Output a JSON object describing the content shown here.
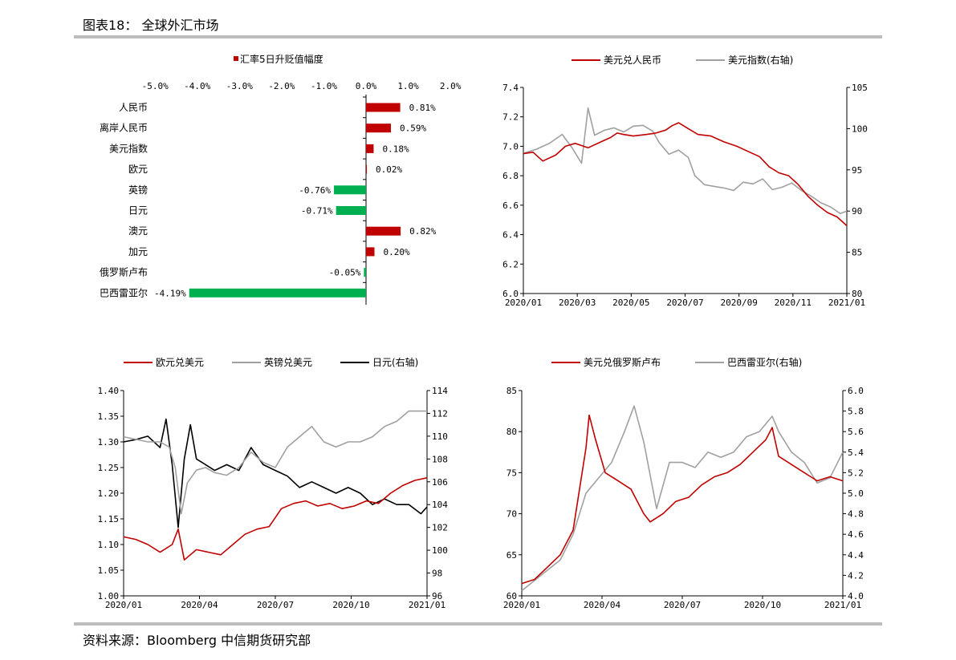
{
  "header": {
    "title": "图表18： 全球外汇市场"
  },
  "footer": {
    "source": "资料来源：Bloomberg 中信期货研究部"
  },
  "colors": {
    "red": "#c00000",
    "green": "#00b050",
    "gray": "#a0a0a0",
    "black": "#000000"
  },
  "chart_data": [
    {
      "type": "bar",
      "orientation": "horizontal",
      "legend": [
        "汇率5日升贬值幅度"
      ],
      "categories": [
        "人民币",
        "离岸人民币",
        "美元指数",
        "欧元",
        "英镑",
        "日元",
        "澳元",
        "加元",
        "俄罗斯卢布",
        "巴西雷亚尔"
      ],
      "values": [
        0.81,
        0.59,
        0.18,
        0.02,
        -0.76,
        -0.71,
        0.82,
        0.2,
        -0.05,
        -4.19
      ],
      "value_labels": [
        "0.81%",
        "0.59%",
        "0.18%",
        "0.02%",
        "-0.76%",
        "-0.71%",
        "0.82%",
        "0.20%",
        "-0.05%",
        "-4.19%"
      ],
      "xlim": [
        -5.0,
        2.0
      ],
      "xticks": [
        "-5.0%",
        "-4.0%",
        "-3.0%",
        "-2.0%",
        "-1.0%",
        "0.0%",
        "1.0%",
        "2.0%"
      ]
    },
    {
      "type": "line",
      "legend": [
        "美元兑人民币",
        "美元指数(右轴)"
      ],
      "xticks": [
        "2020/01",
        "2020/03",
        "2020/05",
        "2020/07",
        "2020/09",
        "2020/11",
        "2021/01"
      ],
      "ylim": [
        6.0,
        7.4
      ],
      "yticks": [
        "6.0",
        "6.2",
        "6.4",
        "6.6",
        "6.8",
        "7.0",
        "7.2",
        "7.4"
      ],
      "y2lim": [
        80,
        105
      ],
      "y2ticks": [
        "80",
        "85",
        "90",
        "95",
        "100",
        "105"
      ],
      "series": [
        {
          "name": "美元兑人民币",
          "axis": "left",
          "color": "#c00000",
          "points": [
            [
              0,
              6.95
            ],
            [
              0.03,
              6.96
            ],
            [
              0.06,
              6.9
            ],
            [
              0.1,
              6.94
            ],
            [
              0.13,
              7.0
            ],
            [
              0.16,
              7.02
            ],
            [
              0.2,
              6.99
            ],
            [
              0.24,
              7.03
            ],
            [
              0.27,
              7.06
            ],
            [
              0.29,
              7.09
            ],
            [
              0.31,
              7.08
            ],
            [
              0.34,
              7.07
            ],
            [
              0.38,
              7.08
            ],
            [
              0.41,
              7.09
            ],
            [
              0.44,
              7.11
            ],
            [
              0.46,
              7.14
            ],
            [
              0.48,
              7.16
            ],
            [
              0.51,
              7.12
            ],
            [
              0.54,
              7.08
            ],
            [
              0.58,
              7.07
            ],
            [
              0.62,
              7.03
            ],
            [
              0.66,
              7.0
            ],
            [
              0.7,
              6.96
            ],
            [
              0.73,
              6.93
            ],
            [
              0.76,
              6.86
            ],
            [
              0.79,
              6.82
            ],
            [
              0.82,
              6.8
            ],
            [
              0.85,
              6.74
            ],
            [
              0.88,
              6.66
            ],
            [
              0.91,
              6.6
            ],
            [
              0.94,
              6.55
            ],
            [
              0.97,
              6.52
            ],
            [
              0.99,
              6.48
            ],
            [
              1.0,
              6.46
            ]
          ]
        },
        {
          "name": "美元指数(右轴)",
          "axis": "right",
          "color": "#a0a0a0",
          "points": [
            [
              0,
              97
            ],
            [
              0.04,
              97.5
            ],
            [
              0.08,
              98.2
            ],
            [
              0.12,
              99.3
            ],
            [
              0.15,
              97.7
            ],
            [
              0.18,
              95.8
            ],
            [
              0.2,
              102.5
            ],
            [
              0.22,
              99.2
            ],
            [
              0.25,
              99.8
            ],
            [
              0.28,
              100.1
            ],
            [
              0.31,
              99.6
            ],
            [
              0.34,
              100.3
            ],
            [
              0.37,
              100.4
            ],
            [
              0.4,
              99.7
            ],
            [
              0.42,
              98.3
            ],
            [
              0.45,
              96.9
            ],
            [
              0.48,
              97.4
            ],
            [
              0.51,
              96.5
            ],
            [
              0.53,
              94.3
            ],
            [
              0.56,
              93.2
            ],
            [
              0.59,
              93.0
            ],
            [
              0.62,
              92.8
            ],
            [
              0.65,
              92.5
            ],
            [
              0.68,
              93.5
            ],
            [
              0.71,
              93.3
            ],
            [
              0.74,
              93.9
            ],
            [
              0.77,
              92.6
            ],
            [
              0.8,
              92.9
            ],
            [
              0.83,
              93.4
            ],
            [
              0.86,
              92.5
            ],
            [
              0.89,
              91.8
            ],
            [
              0.92,
              91.0
            ],
            [
              0.95,
              90.5
            ],
            [
              0.98,
              89.7
            ],
            [
              1.0,
              90.0
            ]
          ]
        }
      ]
    },
    {
      "type": "line",
      "legend": [
        "欧元兑美元",
        "英镑兑美元",
        "日元(右轴)"
      ],
      "xticks": [
        "2020/01",
        "2020/04",
        "2020/07",
        "2020/10",
        "2021/01"
      ],
      "ylim": [
        1.0,
        1.4
      ],
      "yticks": [
        "1.00",
        "1.05",
        "1.10",
        "1.15",
        "1.20",
        "1.25",
        "1.30",
        "1.35",
        "1.40"
      ],
      "y2lim": [
        96,
        114
      ],
      "y2ticks": [
        "96",
        "98",
        "100",
        "102",
        "104",
        "106",
        "108",
        "110",
        "112",
        "114"
      ],
      "series": [
        {
          "name": "欧元兑美元",
          "axis": "left",
          "color": "#c00000",
          "points": [
            [
              0,
              1.115
            ],
            [
              0.04,
              1.11
            ],
            [
              0.08,
              1.1
            ],
            [
              0.12,
              1.085
            ],
            [
              0.16,
              1.1
            ],
            [
              0.18,
              1.13
            ],
            [
              0.2,
              1.07
            ],
            [
              0.24,
              1.09
            ],
            [
              0.28,
              1.085
            ],
            [
              0.32,
              1.08
            ],
            [
              0.36,
              1.1
            ],
            [
              0.4,
              1.12
            ],
            [
              0.44,
              1.13
            ],
            [
              0.48,
              1.135
            ],
            [
              0.52,
              1.17
            ],
            [
              0.56,
              1.18
            ],
            [
              0.6,
              1.185
            ],
            [
              0.64,
              1.175
            ],
            [
              0.68,
              1.18
            ],
            [
              0.72,
              1.17
            ],
            [
              0.76,
              1.175
            ],
            [
              0.8,
              1.185
            ],
            [
              0.84,
              1.18
            ],
            [
              0.88,
              1.2
            ],
            [
              0.92,
              1.215
            ],
            [
              0.96,
              1.225
            ],
            [
              1.0,
              1.23
            ]
          ]
        },
        {
          "name": "英镑兑美元",
          "axis": "left",
          "color": "#a0a0a0",
          "points": [
            [
              0,
              1.31
            ],
            [
              0.04,
              1.305
            ],
            [
              0.08,
              1.3
            ],
            [
              0.12,
              1.3
            ],
            [
              0.15,
              1.29
            ],
            [
              0.17,
              1.25
            ],
            [
              0.19,
              1.16
            ],
            [
              0.21,
              1.22
            ],
            [
              0.24,
              1.245
            ],
            [
              0.27,
              1.25
            ],
            [
              0.3,
              1.24
            ],
            [
              0.34,
              1.235
            ],
            [
              0.38,
              1.25
            ],
            [
              0.42,
              1.28
            ],
            [
              0.46,
              1.26
            ],
            [
              0.5,
              1.25
            ],
            [
              0.54,
              1.29
            ],
            [
              0.58,
              1.31
            ],
            [
              0.62,
              1.33
            ],
            [
              0.66,
              1.3
            ],
            [
              0.7,
              1.29
            ],
            [
              0.74,
              1.3
            ],
            [
              0.78,
              1.3
            ],
            [
              0.82,
              1.31
            ],
            [
              0.86,
              1.33
            ],
            [
              0.9,
              1.34
            ],
            [
              0.94,
              1.36
            ],
            [
              1.0,
              1.36
            ]
          ]
        },
        {
          "name": "日元(右轴)",
          "axis": "right",
          "color": "#000000",
          "points": [
            [
              0,
              109.5
            ],
            [
              0.04,
              109.7
            ],
            [
              0.08,
              110
            ],
            [
              0.12,
              109
            ],
            [
              0.14,
              111.5
            ],
            [
              0.16,
              107.5
            ],
            [
              0.18,
              102
            ],
            [
              0.2,
              108
            ],
            [
              0.22,
              111
            ],
            [
              0.24,
              108
            ],
            [
              0.27,
              107.5
            ],
            [
              0.3,
              107
            ],
            [
              0.34,
              107.5
            ],
            [
              0.38,
              107
            ],
            [
              0.42,
              109
            ],
            [
              0.46,
              107.5
            ],
            [
              0.5,
              107
            ],
            [
              0.54,
              106.5
            ],
            [
              0.58,
              105.5
            ],
            [
              0.62,
              106
            ],
            [
              0.66,
              105.5
            ],
            [
              0.7,
              105
            ],
            [
              0.74,
              105.5
            ],
            [
              0.78,
              105
            ],
            [
              0.82,
              104
            ],
            [
              0.86,
              104.5
            ],
            [
              0.9,
              104
            ],
            [
              0.94,
              104
            ],
            [
              0.98,
              103.2
            ],
            [
              1.0,
              103.8
            ]
          ]
        }
      ]
    },
    {
      "type": "line",
      "legend": [
        "美元兑俄罗斯卢布",
        "巴西雷亚尔(右轴)"
      ],
      "xticks": [
        "2020/01",
        "2020/04",
        "2020/07",
        "2020/10",
        "2021/01"
      ],
      "ylim": [
        60,
        85
      ],
      "yticks": [
        "60",
        "65",
        "70",
        "75",
        "80",
        "85"
      ],
      "y2lim": [
        4.0,
        6.0
      ],
      "y2ticks": [
        "4.0",
        "4.2",
        "4.4",
        "4.6",
        "4.8",
        "5.0",
        "5.2",
        "5.4",
        "5.6",
        "5.8",
        "6.0"
      ],
      "series": [
        {
          "name": "美元兑俄罗斯卢布",
          "axis": "left",
          "color": "#c00000",
          "points": [
            [
              0,
              61.5
            ],
            [
              0.04,
              62
            ],
            [
              0.08,
              63.5
            ],
            [
              0.12,
              65
            ],
            [
              0.16,
              68
            ],
            [
              0.18,
              73
            ],
            [
              0.2,
              78
            ],
            [
              0.21,
              82
            ],
            [
              0.23,
              79
            ],
            [
              0.26,
              75
            ],
            [
              0.3,
              74
            ],
            [
              0.34,
              73
            ],
            [
              0.38,
              70
            ],
            [
              0.4,
              69
            ],
            [
              0.44,
              70
            ],
            [
              0.48,
              71.5
            ],
            [
              0.52,
              72
            ],
            [
              0.56,
              73.5
            ],
            [
              0.6,
              74.5
            ],
            [
              0.64,
              75
            ],
            [
              0.68,
              76
            ],
            [
              0.72,
              77.5
            ],
            [
              0.76,
              79
            ],
            [
              0.78,
              80.5
            ],
            [
              0.8,
              77
            ],
            [
              0.84,
              76
            ],
            [
              0.88,
              75
            ],
            [
              0.9,
              74.5
            ],
            [
              0.92,
              74
            ],
            [
              0.96,
              74.5
            ],
            [
              1.0,
              74
            ]
          ]
        },
        {
          "name": "巴西雷亚尔(右轴)",
          "axis": "right",
          "color": "#a0a0a0",
          "points": [
            [
              0,
              4.05
            ],
            [
              0.04,
              4.15
            ],
            [
              0.08,
              4.25
            ],
            [
              0.12,
              4.35
            ],
            [
              0.16,
              4.6
            ],
            [
              0.2,
              5.0
            ],
            [
              0.24,
              5.15
            ],
            [
              0.28,
              5.3
            ],
            [
              0.32,
              5.6
            ],
            [
              0.35,
              5.85
            ],
            [
              0.38,
              5.5
            ],
            [
              0.42,
              4.85
            ],
            [
              0.46,
              5.3
            ],
            [
              0.5,
              5.3
            ],
            [
              0.54,
              5.25
            ],
            [
              0.58,
              5.4
            ],
            [
              0.62,
              5.35
            ],
            [
              0.66,
              5.4
            ],
            [
              0.7,
              5.55
            ],
            [
              0.74,
              5.6
            ],
            [
              0.78,
              5.75
            ],
            [
              0.8,
              5.6
            ],
            [
              0.84,
              5.4
            ],
            [
              0.88,
              5.3
            ],
            [
              0.92,
              5.1
            ],
            [
              0.96,
              5.15
            ],
            [
              1.0,
              5.4
            ]
          ]
        }
      ]
    }
  ]
}
